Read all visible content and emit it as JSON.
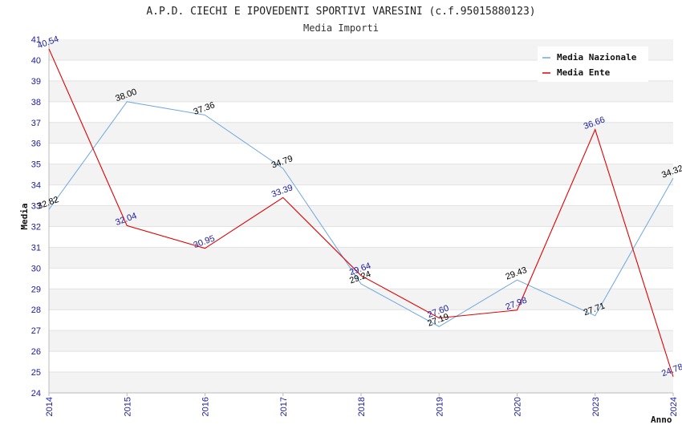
{
  "chart_data": {
    "type": "line",
    "title": "A.P.D. CIECHI E IPOVEDENTI SPORTIVI VARESINI (c.f.95015880123)",
    "subtitle": "Media Importi",
    "xlabel": "Anno",
    "ylabel": "Media",
    "ylim": [
      24,
      41
    ],
    "yticks": [
      24,
      25,
      26,
      27,
      28,
      29,
      30,
      31,
      32,
      33,
      34,
      35,
      36,
      37,
      38,
      39,
      40,
      41
    ],
    "grid": "horizontal bands",
    "legend_position": "top-right",
    "categories": [
      "2014",
      "2015",
      "2016",
      "2017",
      "2018",
      "2019",
      "2020",
      "2023",
      "2024"
    ],
    "series": [
      {
        "name": "Media Nazionale",
        "color": "#6fa8e0",
        "label_color": "#000000",
        "values": [
          32.82,
          38.0,
          37.36,
          34.79,
          29.24,
          27.19,
          29.43,
          27.71,
          34.32
        ],
        "labels": [
          "32.82",
          "38.00",
          "37.36",
          "34.79",
          "29.24",
          "27.19",
          "29.43",
          "27.71",
          "34.32"
        ]
      },
      {
        "name": "Media Ente",
        "color": "#e00000",
        "label_color": "#1a1aa0",
        "values": [
          40.54,
          32.04,
          30.95,
          33.39,
          29.64,
          27.6,
          27.98,
          36.66,
          24.78
        ],
        "labels": [
          "40.54",
          "32.04",
          "30.95",
          "33.39",
          "29.64",
          "27.60",
          "27.98",
          "36.66",
          "24.78"
        ]
      }
    ]
  }
}
